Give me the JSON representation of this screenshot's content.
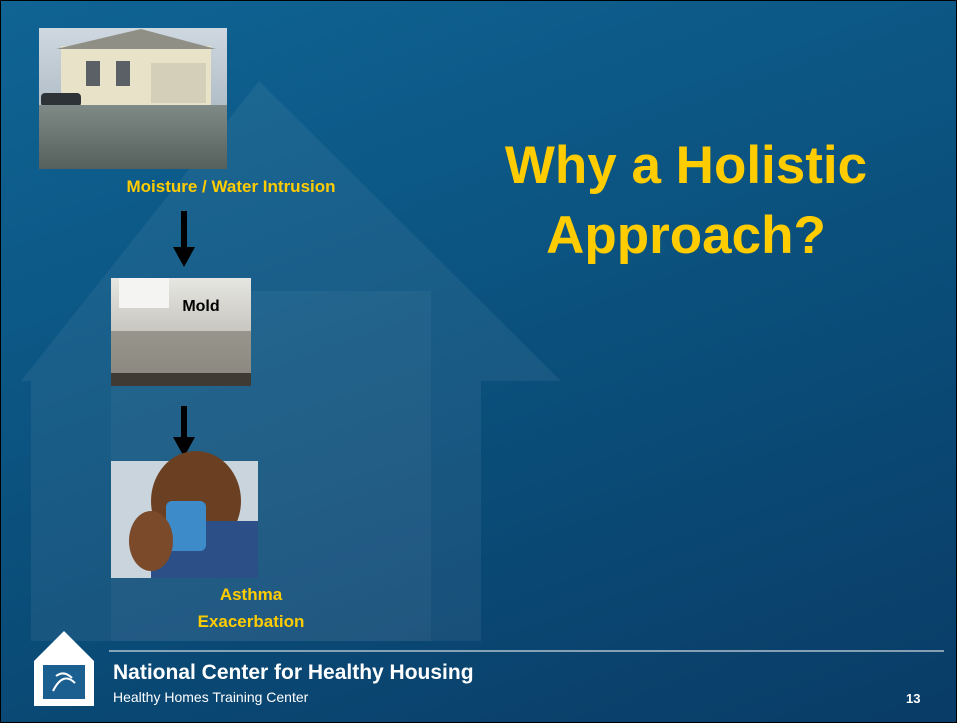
{
  "slide": {
    "title": "Why a Holistic Approach?",
    "steps": [
      {
        "caption": "Moisture / Water Intrusion"
      },
      {
        "caption": "Mold"
      },
      {
        "caption": "Asthma Exacerbation"
      }
    ],
    "footer": {
      "organization": "National Center for Healthy Housing",
      "subtitle": "Healthy Homes Training Center",
      "page_number": 13
    }
  }
}
